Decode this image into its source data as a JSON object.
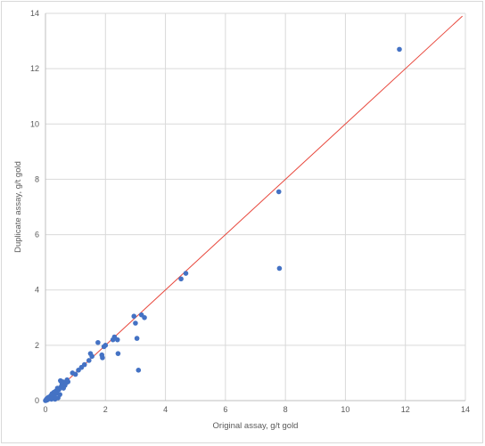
{
  "chart_data": {
    "type": "scatter",
    "title": "",
    "xlabel": "Original assay, g/t gold",
    "ylabel": "Duplicate assay, g/t gold",
    "xlim": [
      0,
      14
    ],
    "ylim": [
      0,
      14
    ],
    "xticks": [
      "0",
      "2",
      "4",
      "6",
      "8",
      "10",
      "12",
      "14"
    ],
    "yticks": [
      "0",
      "2",
      "4",
      "6",
      "8",
      "10",
      "12",
      "14"
    ],
    "grid": true,
    "legend": "none",
    "colors": {
      "points": "#4472c4",
      "line": "#e8473c",
      "grid": "#d9d9d9",
      "axis": "#bfbfbf"
    },
    "series": [
      {
        "name": "",
        "points": [
          [
            0.0,
            0.0
          ],
          [
            0.02,
            0.01
          ],
          [
            0.03,
            0.05
          ],
          [
            0.05,
            0.02
          ],
          [
            0.06,
            0.08
          ],
          [
            0.08,
            0.04
          ],
          [
            0.1,
            0.12
          ],
          [
            0.12,
            0.07
          ],
          [
            0.15,
            0.1
          ],
          [
            0.18,
            0.18
          ],
          [
            0.2,
            0.05
          ],
          [
            0.22,
            0.25
          ],
          [
            0.25,
            0.15
          ],
          [
            0.28,
            0.3
          ],
          [
            0.3,
            0.2
          ],
          [
            0.32,
            0.05
          ],
          [
            0.35,
            0.35
          ],
          [
            0.38,
            0.28
          ],
          [
            0.4,
            0.45
          ],
          [
            0.42,
            0.1
          ],
          [
            0.45,
            0.4
          ],
          [
            0.48,
            0.22
          ],
          [
            0.5,
            0.72
          ],
          [
            0.52,
            0.5
          ],
          [
            0.55,
            0.62
          ],
          [
            0.58,
            0.68
          ],
          [
            0.6,
            0.45
          ],
          [
            0.62,
            0.6
          ],
          [
            0.65,
            0.55
          ],
          [
            0.7,
            0.65
          ],
          [
            0.72,
            0.75
          ],
          [
            0.75,
            0.68
          ],
          [
            0.9,
            1.0
          ],
          [
            1.0,
            0.95
          ],
          [
            1.1,
            1.1
          ],
          [
            1.2,
            1.2
          ],
          [
            1.3,
            1.3
          ],
          [
            1.45,
            1.45
          ],
          [
            1.5,
            1.7
          ],
          [
            1.55,
            1.6
          ],
          [
            1.75,
            2.1
          ],
          [
            1.88,
            1.65
          ],
          [
            1.9,
            1.55
          ],
          [
            1.95,
            1.95
          ],
          [
            2.0,
            2.0
          ],
          [
            2.25,
            2.2
          ],
          [
            2.3,
            2.3
          ],
          [
            2.4,
            2.2
          ],
          [
            2.42,
            1.7
          ],
          [
            2.95,
            3.05
          ],
          [
            3.0,
            2.8
          ],
          [
            3.05,
            2.25
          ],
          [
            3.1,
            1.1
          ],
          [
            3.2,
            3.1
          ],
          [
            3.3,
            3.0
          ],
          [
            4.52,
            4.4
          ],
          [
            4.68,
            4.6
          ],
          [
            7.78,
            7.55
          ],
          [
            7.8,
            4.78
          ],
          [
            11.8,
            12.7
          ]
        ]
      }
    ],
    "reference_line": {
      "x": [
        0,
        13.9
      ],
      "y": [
        0,
        13.9
      ]
    }
  }
}
